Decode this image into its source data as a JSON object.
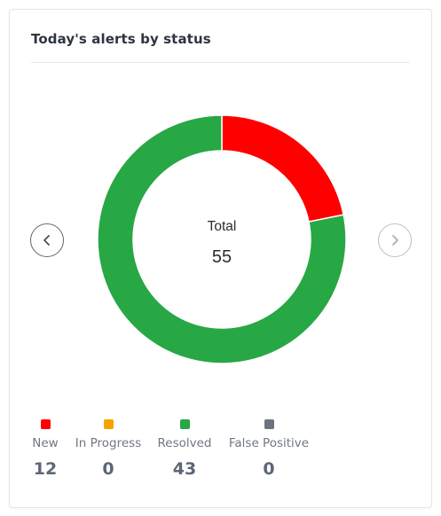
{
  "card": {
    "title": "Today's alerts by status"
  },
  "chart_data": {
    "type": "pie",
    "variant": "donut",
    "center_label": "Total",
    "total": 55,
    "categories": [
      "New",
      "In Progress",
      "Resolved",
      "False Positive"
    ],
    "values": [
      12,
      0,
      43,
      0
    ],
    "colors": [
      "#ff0000",
      "#f5a300",
      "#28a745",
      "#6c737f"
    ],
    "start_angle_deg": 0,
    "direction": "clockwise"
  },
  "nav": {
    "prev_icon": "chevron-left-icon",
    "next_icon": "chevron-right-icon"
  },
  "legend": [
    {
      "label": "New",
      "value": "12",
      "color": "#ff0000"
    },
    {
      "label": "In Progress",
      "value": "0",
      "color": "#f5a300"
    },
    {
      "label": "Resolved",
      "value": "43",
      "color": "#28a745"
    },
    {
      "label": "False Positive",
      "value": "0",
      "color": "#6c737f"
    }
  ]
}
